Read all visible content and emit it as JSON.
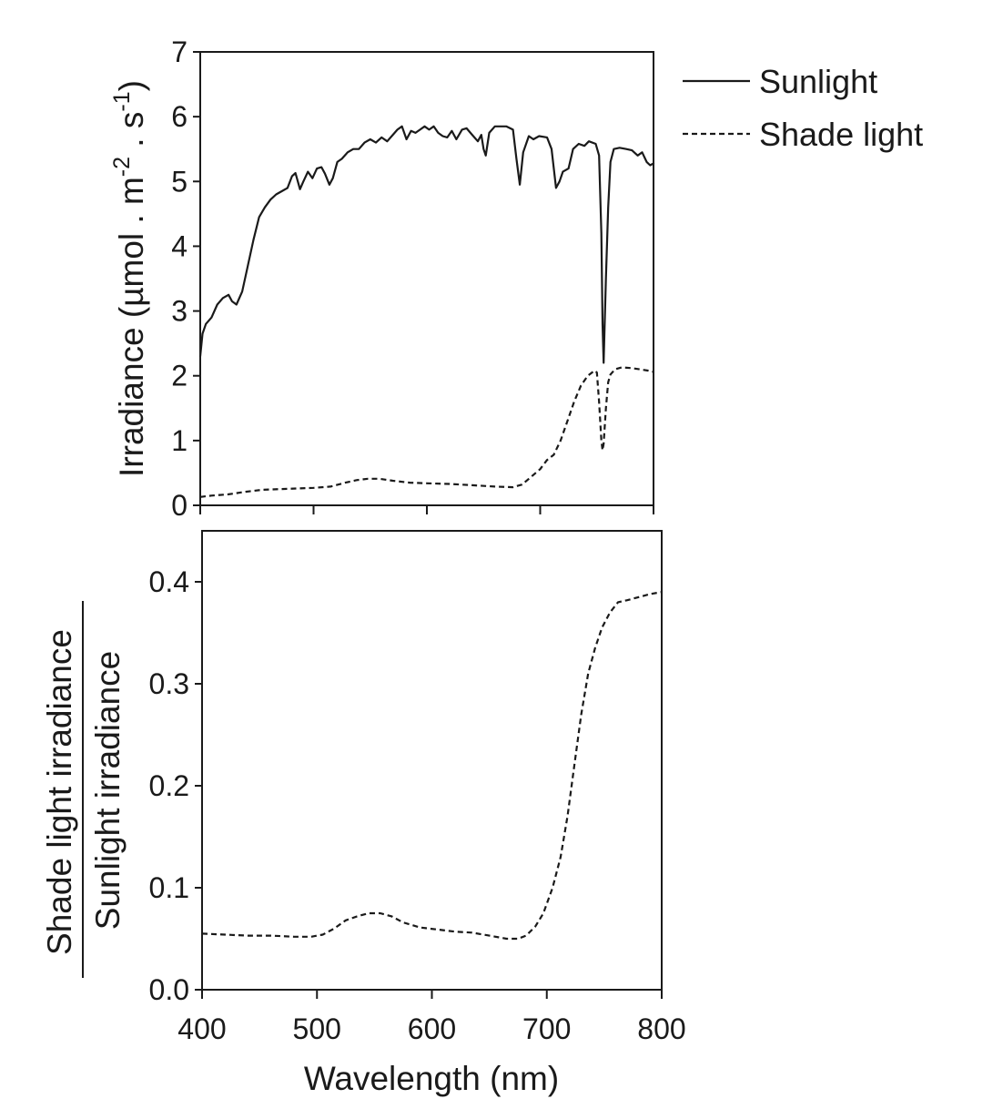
{
  "chart_data": [
    {
      "type": "line",
      "xlim": [
        400,
        800
      ],
      "ylim": [
        0,
        7
      ],
      "x_ticks": [
        400,
        500,
        600,
        700,
        800
      ],
      "y_ticks": [
        "0",
        "1",
        "2",
        "3",
        "4",
        "5",
        "6",
        "7"
      ],
      "ylabel": "Irradiance (µmol . m-2 . s-1)",
      "ylabel_parts": {
        "base": "Irradiance (µmol . m",
        "sup1": "-2",
        "mid": " . s",
        "sup2": "-1",
        "end": ")"
      },
      "grid": false,
      "legend_position": "top-right, outside plot",
      "legend": [
        "Sunlight",
        "Shade light"
      ],
      "series": [
        {
          "name": "Sunlight",
          "style": "solid",
          "points": [
            [
              400,
              2.3
            ],
            [
              402,
              2.65
            ],
            [
              405,
              2.8
            ],
            [
              410,
              2.9
            ],
            [
              415,
              3.1
            ],
            [
              420,
              3.2
            ],
            [
              425,
              3.25
            ],
            [
              428,
              3.15
            ],
            [
              432,
              3.1
            ],
            [
              437,
              3.3
            ],
            [
              442,
              3.7
            ],
            [
              447,
              4.1
            ],
            [
              452,
              4.45
            ],
            [
              457,
              4.6
            ],
            [
              462,
              4.72
            ],
            [
              467,
              4.8
            ],
            [
              472,
              4.85
            ],
            [
              477,
              4.9
            ],
            [
              481,
              5.08
            ],
            [
              484,
              5.13
            ],
            [
              488,
              4.88
            ],
            [
              491,
              5.0
            ],
            [
              495,
              5.15
            ],
            [
              499,
              5.05
            ],
            [
              503,
              5.2
            ],
            [
              507,
              5.22
            ],
            [
              510,
              5.12
            ],
            [
              514,
              4.95
            ],
            [
              517,
              5.05
            ],
            [
              521,
              5.3
            ],
            [
              525,
              5.35
            ],
            [
              530,
              5.45
            ],
            [
              535,
              5.5
            ],
            [
              540,
              5.5
            ],
            [
              545,
              5.6
            ],
            [
              550,
              5.65
            ],
            [
              555,
              5.6
            ],
            [
              560,
              5.68
            ],
            [
              565,
              5.62
            ],
            [
              570,
              5.72
            ],
            [
              574,
              5.8
            ],
            [
              578,
              5.85
            ],
            [
              582,
              5.65
            ],
            [
              586,
              5.78
            ],
            [
              590,
              5.75
            ],
            [
              594,
              5.8
            ],
            [
              598,
              5.85
            ],
            [
              602,
              5.8
            ],
            [
              606,
              5.85
            ],
            [
              610,
              5.75
            ],
            [
              614,
              5.7
            ],
            [
              618,
              5.68
            ],
            [
              622,
              5.78
            ],
            [
              626,
              5.65
            ],
            [
              631,
              5.8
            ],
            [
              635,
              5.82
            ],
            [
              640,
              5.72
            ],
            [
              645,
              5.62
            ],
            [
              648,
              5.72
            ],
            [
              650,
              5.5
            ],
            [
              652,
              5.4
            ],
            [
              655,
              5.75
            ],
            [
              660,
              5.85
            ],
            [
              670,
              5.85
            ],
            [
              676,
              5.8
            ],
            [
              679,
              5.35
            ],
            [
              682,
              4.95
            ],
            [
              685,
              5.45
            ],
            [
              690,
              5.7
            ],
            [
              694,
              5.65
            ],
            [
              699,
              5.7
            ],
            [
              706,
              5.68
            ],
            [
              710,
              5.5
            ],
            [
              714,
              4.9
            ],
            [
              717,
              5.0
            ],
            [
              720,
              5.15
            ],
            [
              725,
              5.2
            ],
            [
              729,
              5.5
            ],
            [
              734,
              5.58
            ],
            [
              739,
              5.55
            ],
            [
              743,
              5.62
            ],
            [
              749,
              5.58
            ],
            [
              752,
              5.4
            ],
            [
              754,
              4.2
            ],
            [
              755,
              2.8
            ],
            [
              756,
              2.2
            ],
            [
              758,
              3.5
            ],
            [
              760,
              4.6
            ],
            [
              762,
              5.3
            ],
            [
              765,
              5.5
            ],
            [
              770,
              5.52
            ],
            [
              776,
              5.5
            ],
            [
              781,
              5.48
            ],
            [
              786,
              5.4
            ],
            [
              790,
              5.45
            ],
            [
              794,
              5.3
            ],
            [
              797,
              5.25
            ],
            [
              800,
              5.28
            ]
          ]
        },
        {
          "name": "Shade light",
          "style": "dashed",
          "points": [
            [
              400,
              0.13
            ],
            [
              410,
              0.15
            ],
            [
              425,
              0.17
            ],
            [
              440,
              0.21
            ],
            [
              455,
              0.24
            ],
            [
              470,
              0.25
            ],
            [
              485,
              0.26
            ],
            [
              500,
              0.27
            ],
            [
              515,
              0.29
            ],
            [
              528,
              0.35
            ],
            [
              538,
              0.39
            ],
            [
              548,
              0.41
            ],
            [
              558,
              0.41
            ],
            [
              570,
              0.38
            ],
            [
              585,
              0.35
            ],
            [
              600,
              0.34
            ],
            [
              620,
              0.33
            ],
            [
              640,
              0.31
            ],
            [
              660,
              0.29
            ],
            [
              676,
              0.28
            ],
            [
              684,
              0.32
            ],
            [
              692,
              0.44
            ],
            [
              700,
              0.56
            ],
            [
              706,
              0.7
            ],
            [
              712,
              0.78
            ],
            [
              718,
              1.0
            ],
            [
              724,
              1.3
            ],
            [
              730,
              1.6
            ],
            [
              736,
              1.85
            ],
            [
              742,
              2.0
            ],
            [
              748,
              2.08
            ],
            [
              750,
              2.05
            ],
            [
              752,
              1.6
            ],
            [
              754,
              1.0
            ],
            [
              755,
              0.85
            ],
            [
              756,
              0.95
            ],
            [
              758,
              1.5
            ],
            [
              760,
              1.9
            ],
            [
              762,
              2.02
            ],
            [
              766,
              2.1
            ],
            [
              772,
              2.13
            ],
            [
              780,
              2.12
            ],
            [
              788,
              2.1
            ],
            [
              795,
              2.08
            ],
            [
              800,
              2.06
            ]
          ]
        }
      ]
    },
    {
      "type": "line",
      "xlim": [
        400,
        800
      ],
      "ylim": [
        0,
        0.45
      ],
      "x_ticks": [
        "400",
        "500",
        "600",
        "700",
        "800"
      ],
      "y_ticks": [
        "0.0",
        "0.1",
        "0.2",
        "0.3",
        "0.4"
      ],
      "xlabel": "Wavelength (nm)",
      "ylabel_numerator": "Shade light irradiance",
      "ylabel_denominator": "Sunlight irradiance",
      "grid": false,
      "series": [
        {
          "style": "dashed",
          "points": [
            [
              400,
              0.055
            ],
            [
              420,
              0.054
            ],
            [
              440,
              0.053
            ],
            [
              460,
              0.053
            ],
            [
              480,
              0.052
            ],
            [
              495,
              0.052
            ],
            [
              505,
              0.054
            ],
            [
              515,
              0.06
            ],
            [
              525,
              0.068
            ],
            [
              535,
              0.072
            ],
            [
              545,
              0.075
            ],
            [
              555,
              0.075
            ],
            [
              565,
              0.072
            ],
            [
              575,
              0.066
            ],
            [
              590,
              0.061
            ],
            [
              605,
              0.059
            ],
            [
              620,
              0.057
            ],
            [
              635,
              0.056
            ],
            [
              650,
              0.053
            ],
            [
              665,
              0.05
            ],
            [
              675,
              0.05
            ],
            [
              682,
              0.053
            ],
            [
              690,
              0.062
            ],
            [
              697,
              0.075
            ],
            [
              705,
              0.1
            ],
            [
              712,
              0.13
            ],
            [
              718,
              0.17
            ],
            [
              724,
              0.22
            ],
            [
              730,
              0.27
            ],
            [
              736,
              0.31
            ],
            [
              742,
              0.335
            ],
            [
              748,
              0.355
            ],
            [
              755,
              0.37
            ],
            [
              762,
              0.38
            ],
            [
              770,
              0.382
            ],
            [
              780,
              0.385
            ],
            [
              790,
              0.388
            ],
            [
              800,
              0.39
            ]
          ]
        }
      ]
    }
  ]
}
